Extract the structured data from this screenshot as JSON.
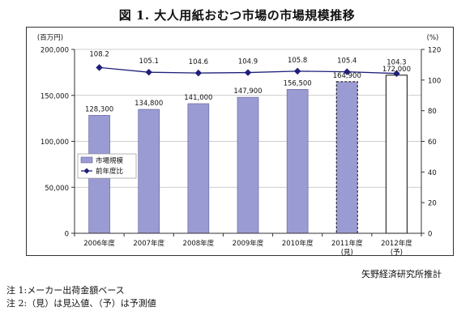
{
  "title": "図 1.  大人用紙おむつ市場の市場規模推移",
  "source": "矢野経済研究所推計",
  "notes": [
    "注 1:メーカー出荷金額ベース",
    "注 2:（見）は見込値、（予）は予測値"
  ],
  "chart_data": {
    "type": "bar",
    "title": "図 1.  大人用紙おむつ市場の市場規模推移",
    "categories": [
      "2006年度",
      "2007年度",
      "2008年度",
      "2009年度",
      "2010年度",
      "2011年度",
      "2012年度"
    ],
    "category_notes": [
      "",
      "",
      "",
      "",
      "",
      "(見)",
      "(予)"
    ],
    "y_left": {
      "unit": "(百万円)",
      "range": [
        0,
        200000
      ],
      "ticks": [
        "0",
        "50,000",
        "100,000",
        "150,000",
        "200,000"
      ]
    },
    "y_right": {
      "unit": "(%)",
      "range": [
        0,
        120
      ],
      "ticks": [
        "0",
        "20",
        "40",
        "60",
        "80",
        "100",
        "120"
      ]
    },
    "series": [
      {
        "name": "市場規模",
        "type": "bar",
        "axis": "left",
        "color": "#9b9bd4",
        "values": [
          128300,
          134800,
          141000,
          147900,
          156500,
          164900,
          172000
        ],
        "labels": [
          "128,300",
          "134,800",
          "141,000",
          "147,900",
          "156,500",
          "164,900",
          "172,000"
        ],
        "styles": [
          "solid",
          "solid",
          "solid",
          "solid",
          "solid",
          "dashed",
          "outline"
        ]
      },
      {
        "name": "前年度比",
        "type": "line",
        "axis": "right",
        "color": "#1f1f7a",
        "values": [
          108.2,
          105.1,
          104.6,
          104.9,
          105.8,
          105.4,
          104.3
        ],
        "labels": [
          "108.2",
          "105.1",
          "104.6",
          "104.9",
          "105.8",
          "105.4",
          "104.3"
        ]
      }
    ],
    "grid": "horizontal",
    "legend": "left-middle"
  }
}
